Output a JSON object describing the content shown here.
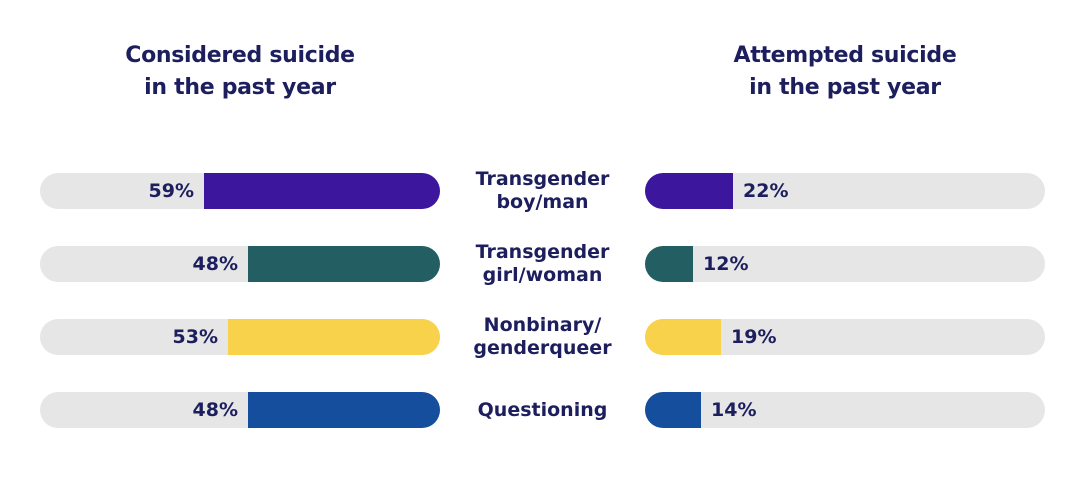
{
  "chart_data": {
    "type": "bar",
    "orientation": "horizontal",
    "layout": "back-to-back",
    "categories": [
      [
        "Transgender",
        "boy/man"
      ],
      [
        "Transgender",
        "girl/woman"
      ],
      [
        "Nonbinary/",
        "genderqueer"
      ],
      [
        "Questioning"
      ]
    ],
    "series": [
      {
        "name": [
          "Considered suicide",
          "in the past year"
        ],
        "values": [
          59,
          48,
          53,
          48
        ],
        "value_labels": [
          "59%",
          "48%",
          "53%",
          "48%"
        ]
      },
      {
        "name": [
          "Attempted suicide",
          "in the past year"
        ],
        "values": [
          22,
          12,
          19,
          14
        ],
        "value_labels": [
          "22%",
          "12%",
          "19%",
          "14%"
        ]
      }
    ],
    "colors": [
      "#3c169d",
      "#235e63",
      "#f7d24a",
      "#154e9c"
    ],
    "track_color": "#e6e6e6",
    "unit": "%",
    "xlim": [
      0,
      100
    ],
    "grid": false
  }
}
